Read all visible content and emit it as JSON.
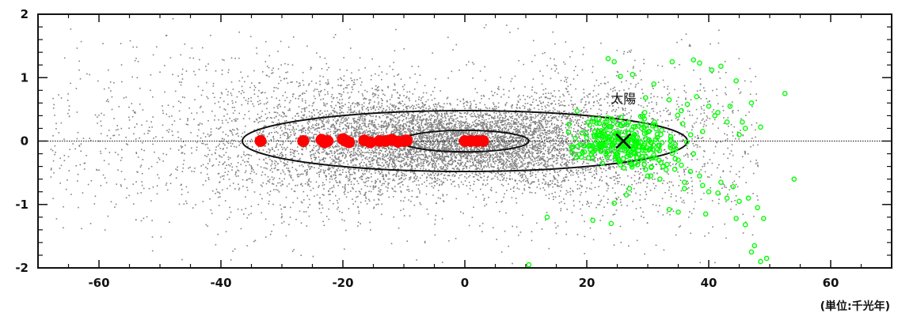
{
  "chart_data": {
    "type": "scatter",
    "title": "",
    "xlabel": "",
    "ylabel": "",
    "unit_label": "(単位:千光年)",
    "xlim": [
      -70,
      70
    ],
    "ylim": [
      -2,
      2
    ],
    "x_ticks": [
      -60,
      -40,
      -20,
      0,
      20,
      40,
      60
    ],
    "x_tick_labels": [
      "-60",
      "-40",
      "-20",
      "0",
      "20",
      "40",
      "60"
    ],
    "y_ticks": [
      -2,
      -1,
      0,
      1,
      2
    ],
    "y_tick_labels": [
      "-2",
      "-1",
      "0",
      "1",
      "2"
    ],
    "grid": false,
    "zero_line": true,
    "annotations": [
      {
        "text": "太陽",
        "x": 26,
        "y": 0.6,
        "marker": "x",
        "marker_x": 26,
        "marker_y": 0
      }
    ],
    "ellipses": [
      {
        "center": [
          0,
          0
        ],
        "rx": 36.5,
        "ry": 0.48,
        "stroke": "#111111"
      },
      {
        "center": [
          0,
          0
        ],
        "rx": 10.5,
        "ry": 0.17,
        "stroke": "#111111"
      }
    ],
    "series": [
      {
        "style": "gray-dots",
        "color": "#808080",
        "distribution": {
          "center": [
            -3,
            0
          ],
          "sigma_x": 18,
          "sigma_y": 0.32,
          "extent_x": [
            -68,
            48
          ],
          "extent_y": [
            -1.95,
            1.95
          ],
          "count": 9000
        }
      },
      {
        "style": "red-filled",
        "color": "#ff0000",
        "x": [
          -33.5,
          -26.5,
          -23.5,
          -23,
          -22.5,
          -20,
          -19.5,
          -19,
          -16.5,
          -15.5,
          -14,
          -13,
          -12,
          -11,
          -10,
          -9.5,
          0,
          1,
          2,
          3
        ],
        "y": [
          0,
          0,
          0.02,
          -0.02,
          0,
          0.03,
          0,
          -0.02,
          0.01,
          -0.02,
          0,
          0,
          0.02,
          -0.01,
          0,
          0.01,
          0,
          0,
          0,
          0
        ]
      },
      {
        "style": "green-open",
        "color": "#00ff00",
        "x": [
          23.5,
          24.5,
          25.5,
          27.5,
          31,
          34,
          37.5,
          38.5,
          40.5,
          42,
          44.5,
          47,
          33.5,
          35.5,
          36.5,
          38,
          40,
          41.5,
          43,
          45,
          46,
          48.5,
          52.5,
          23,
          29,
          39,
          41,
          43.5,
          45.5,
          20.5,
          22,
          25,
          28,
          30.5,
          32.5,
          35,
          36,
          37,
          38.5,
          40,
          42,
          44,
          46.5,
          48,
          49,
          54,
          26.5,
          24.5,
          33.5,
          35,
          39.5,
          44.5,
          46,
          47.5,
          49.5,
          18.5,
          20,
          23.5,
          26,
          28.5,
          31,
          34.5,
          36,
          39,
          41.5,
          43,
          45,
          47,
          48.5,
          13.5,
          10.5,
          17,
          21.5,
          22,
          29.5,
          32,
          37.5,
          21,
          24,
          27,
          30,
          33,
          35.5
        ],
        "y": [
          1.3,
          1.25,
          1.02,
          1.05,
          0.9,
          1.25,
          1.28,
          1.23,
          1.12,
          1.18,
          0.95,
          0.6,
          0.65,
          0.48,
          0.58,
          0.7,
          0.55,
          0.45,
          0.3,
          0.1,
          0.2,
          0.22,
          0.75,
          0.3,
          0.2,
          0.15,
          0.4,
          0.55,
          0.3,
          0.25,
          -0.05,
          -0.2,
          -0.35,
          -0.55,
          -0.4,
          -0.3,
          -0.65,
          -0.48,
          -0.55,
          -0.8,
          -0.65,
          -0.72,
          -0.9,
          -1.05,
          -1.22,
          -0.6,
          -0.85,
          -0.98,
          -1.08,
          -1.12,
          -1.15,
          -1.22,
          -1.32,
          -1.65,
          -1.85,
          -0.08,
          0.05,
          0.12,
          -0.28,
          -0.15,
          -0.22,
          -0.28,
          -0.75,
          -0.7,
          -0.82,
          -0.9,
          -0.95,
          -1.75,
          -1.9,
          -1.2,
          -1.95,
          0.14,
          -0.12,
          0.35,
          0.45,
          -0.6,
          -0.2,
          -1.25,
          -1.3,
          -0.75,
          -0.55,
          -0.45,
          -0.38
        ]
      }
    ]
  }
}
